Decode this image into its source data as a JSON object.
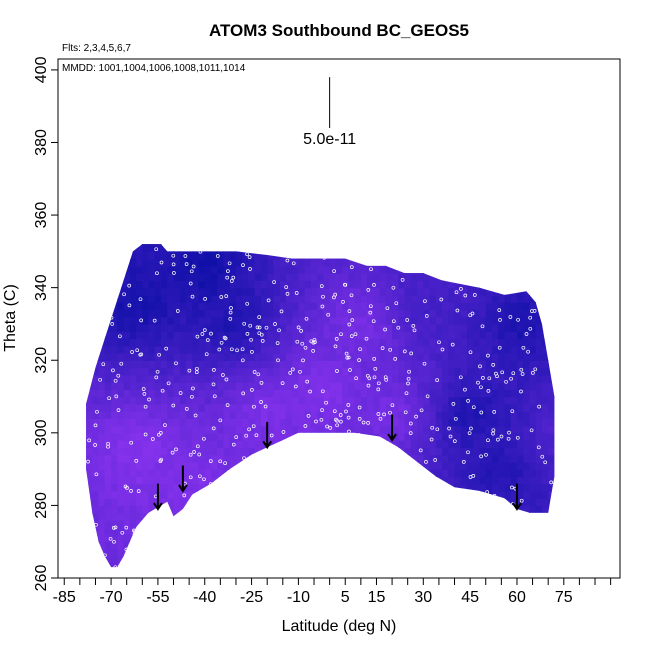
{
  "chart_data": {
    "type": "heatmap",
    "title": "ATOM3 Southbound BC_GEOS5",
    "flights_note": "Flts: 2,3,4,5,6,7",
    "mmdd_note": "MMDD: 1001,1004,1006,1008,1011,1014",
    "xlabel": "Latitude (deg N)",
    "ylabel": "Theta (C)",
    "xlim": [
      -87,
      93
    ],
    "ylim": [
      260,
      403
    ],
    "x_ticks": [
      -85,
      -70,
      -55,
      -40,
      -25,
      -10,
      5,
      15,
      30,
      45,
      60,
      75
    ],
    "x_minor_ticks": [
      -80,
      -75,
      -65,
      -60,
      -50,
      -45,
      -35,
      -30,
      -20,
      -15,
      -5,
      0,
      10,
      20,
      25,
      35,
      40,
      50,
      55,
      65,
      70,
      80,
      85,
      90
    ],
    "y_ticks": [
      260,
      280,
      300,
      320,
      340,
      360,
      380,
      400
    ],
    "scale_bar": {
      "label": "5.0e-11",
      "lat": 0,
      "theta_top": 398,
      "theta_bottom": 384
    },
    "upper_boundary": [
      [
        -78,
        308
      ],
      [
        -75,
        318
      ],
      [
        -72,
        326
      ],
      [
        -69,
        334
      ],
      [
        -66,
        342
      ],
      [
        -63,
        350
      ],
      [
        -60,
        352
      ],
      [
        -54,
        352
      ],
      [
        -52,
        350
      ],
      [
        -30,
        350
      ],
      [
        -20,
        349
      ],
      [
        -12,
        348
      ],
      [
        5,
        348
      ],
      [
        12,
        346
      ],
      [
        18,
        346
      ],
      [
        24,
        344
      ],
      [
        30,
        344
      ],
      [
        36,
        342
      ],
      [
        48,
        340
      ],
      [
        56,
        338
      ],
      [
        63,
        339
      ],
      [
        66,
        336
      ],
      [
        68,
        330
      ],
      [
        70,
        320
      ],
      [
        72,
        310
      ]
    ],
    "lower_boundary": [
      [
        72,
        288
      ],
      [
        70,
        278
      ],
      [
        64,
        278
      ],
      [
        60,
        279
      ],
      [
        56,
        282
      ],
      [
        48,
        284
      ],
      [
        40,
        285
      ],
      [
        34,
        288
      ],
      [
        28,
        292
      ],
      [
        22,
        296
      ],
      [
        16,
        299
      ],
      [
        8,
        300
      ],
      [
        0,
        300
      ],
      [
        -10,
        300
      ],
      [
        -15,
        298
      ],
      [
        -20,
        296
      ],
      [
        -25,
        294
      ],
      [
        -32,
        290
      ],
      [
        -38,
        286
      ],
      [
        -44,
        283
      ],
      [
        -47,
        279
      ],
      [
        -50,
        277
      ],
      [
        -52,
        281
      ],
      [
        -54,
        280
      ],
      [
        -58,
        278
      ],
      [
        -60,
        276
      ],
      [
        -62,
        274
      ],
      [
        -64,
        270
      ],
      [
        -66,
        266
      ],
      [
        -68,
        263
      ],
      [
        -70,
        263
      ],
      [
        -72,
        266
      ],
      [
        -74,
        270
      ],
      [
        -76,
        278
      ],
      [
        -78,
        290
      ]
    ],
    "color_low": "#1010a8",
    "color_high": "#8c34f0",
    "intensity_blobs": [
      {
        "lat": -62,
        "theta": 295,
        "value": 0.95
      },
      {
        "lat": -45,
        "theta": 288,
        "value": 0.9
      },
      {
        "lat": -20,
        "theta": 305,
        "value": 0.9
      },
      {
        "lat": -2,
        "theta": 312,
        "value": 0.95
      },
      {
        "lat": 10,
        "theta": 330,
        "value": 0.85
      },
      {
        "lat": 20,
        "theta": 305,
        "value": 0.85
      },
      {
        "lat": -62,
        "theta": 335,
        "value": 0.05
      },
      {
        "lat": -40,
        "theta": 345,
        "value": 0.0
      },
      {
        "lat": -30,
        "theta": 330,
        "value": 0.1
      },
      {
        "lat": 45,
        "theta": 305,
        "value": 0.1
      },
      {
        "lat": 62,
        "theta": 330,
        "value": 0.1
      },
      {
        "lat": 55,
        "theta": 290,
        "value": 0.15
      },
      {
        "lat": 30,
        "theta": 335,
        "value": 0.4
      },
      {
        "lat": 72,
        "theta": 300,
        "value": 0.5
      }
    ],
    "tropopause_arrows": [
      {
        "lat": -55,
        "theta_top": 286,
        "theta_bottom": 279
      },
      {
        "lat": -47,
        "theta_top": 291,
        "theta_bottom": 284
      },
      {
        "lat": -20,
        "theta_top": 303,
        "theta_bottom": 296
      },
      {
        "lat": 20,
        "theta_top": 305,
        "theta_bottom": 298
      },
      {
        "lat": 60,
        "theta_top": 286,
        "theta_bottom": 279
      }
    ],
    "sample_count": 650
  }
}
